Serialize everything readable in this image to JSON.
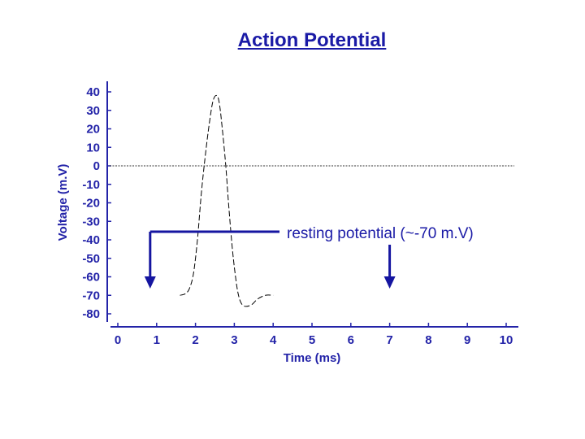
{
  "chart_data": {
    "type": "line",
    "title": "Action Potential",
    "xlabel": "Time (ms)",
    "ylabel": "Voltage (m.V)",
    "xlim": [
      0,
      10
    ],
    "ylim": [
      -80,
      40
    ],
    "x_ticks": [
      0,
      1,
      2,
      3,
      4,
      5,
      6,
      7,
      8,
      9,
      10
    ],
    "y_ticks": [
      40,
      30,
      20,
      10,
      0,
      -10,
      -20,
      -30,
      -40,
      -50,
      -60,
      -70,
      -80
    ],
    "series": [
      {
        "style": "dashed",
        "x": [
          1.6,
          1.75,
          1.85,
          1.95,
          2.05,
          2.15,
          2.25,
          2.35,
          2.45,
          2.55,
          2.62,
          2.7,
          2.78,
          2.85,
          2.95,
          3.05,
          3.12,
          3.2,
          3.3,
          3.45,
          3.6,
          3.8,
          4.0
        ],
        "values": [
          -70,
          -69,
          -66,
          -58,
          -40,
          -15,
          5,
          22,
          35,
          38,
          33,
          18,
          0,
          -20,
          -45,
          -63,
          -71,
          -75,
          -76,
          -75,
          -72,
          -70,
          -70
        ]
      }
    ],
    "reference_line": {
      "y": 0,
      "style": "dotted"
    },
    "annotation": {
      "text": "resting potential (~-70 m.V)",
      "arrows_at_x": [
        1,
        7
      ]
    },
    "colors": {
      "text": "#2323a8",
      "annotation": "#1a1aa6",
      "arrow": "#1515a0",
      "trace": "#000000"
    },
    "grid": false
  }
}
